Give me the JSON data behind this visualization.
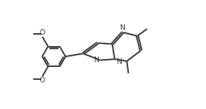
{
  "bg_color": "#ffffff",
  "bond_color": "#3a3a3a",
  "atom_color": "#3a3a3a",
  "bond_width": 1.3,
  "font_size": 6.5,
  "fig_width": 2.55,
  "fig_height": 1.35,
  "dpi": 100,
  "xlim": [
    0,
    10
  ],
  "ylim": [
    0,
    5.3
  ]
}
